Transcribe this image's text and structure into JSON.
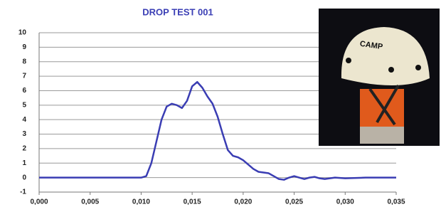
{
  "chart_data": {
    "type": "line",
    "title": "DROP TEST 001",
    "x": [
      0.0,
      0.005,
      0.01,
      0.0105,
      0.011,
      0.0115,
      0.012,
      0.0125,
      0.013,
      0.0135,
      0.014,
      0.0145,
      0.015,
      0.0155,
      0.016,
      0.0165,
      0.017,
      0.0175,
      0.018,
      0.0185,
      0.019,
      0.0195,
      0.02,
      0.0205,
      0.021,
      0.0215,
      0.022,
      0.0225,
      0.023,
      0.0235,
      0.024,
      0.0245,
      0.025,
      0.0255,
      0.026,
      0.0265,
      0.027,
      0.0275,
      0.028,
      0.029,
      0.03,
      0.032,
      0.035
    ],
    "series": [
      {
        "color": "#3a3db3",
        "values": [
          0,
          0,
          0,
          0.1,
          1,
          2.5,
          4,
          4.9,
          5.1,
          5.0,
          4.8,
          5.3,
          6.3,
          6.6,
          6.2,
          5.6,
          5.1,
          4.2,
          3.0,
          1.9,
          1.5,
          1.4,
          1.2,
          0.9,
          0.6,
          0.4,
          0.35,
          0.3,
          0.1,
          -0.1,
          -0.15,
          0,
          0.1,
          0,
          -0.1,
          0,
          0.05,
          -0.05,
          -0.1,
          0,
          -0.05,
          0,
          0
        ]
      }
    ],
    "xlim": [
      0,
      0.035
    ],
    "xticks": [
      {
        "value": 0,
        "label": "0,000"
      },
      {
        "value": 0.005,
        "label": "0,005"
      },
      {
        "value": 0.01,
        "label": "0,010"
      },
      {
        "value": 0.015,
        "label": "0,015"
      },
      {
        "value": 0.02,
        "label": "0,020"
      },
      {
        "value": 0.025,
        "label": "0,025"
      },
      {
        "value": 0.03,
        "label": "0,030"
      },
      {
        "value": 0.035,
        "label": "0,035"
      }
    ],
    "ylim": [
      -1,
      10
    ],
    "yticks": [
      -1,
      0,
      1,
      2,
      3,
      4,
      5,
      6,
      7,
      8,
      9,
      10
    ],
    "grid": true,
    "image_text": "CAMP"
  }
}
